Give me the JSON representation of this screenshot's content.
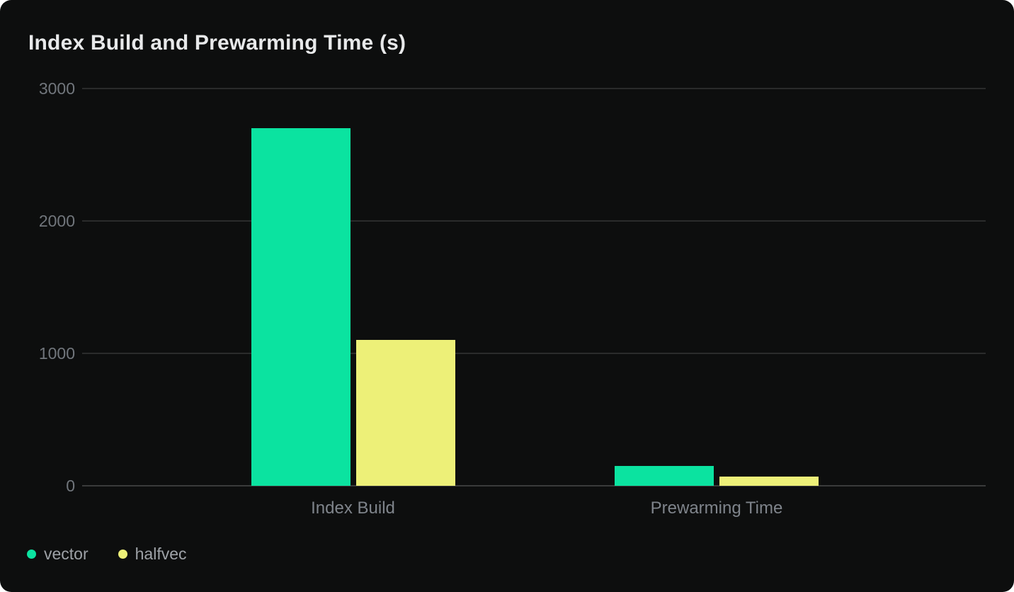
{
  "title": "Index Build and Prewarming Time (s)",
  "chart_data": {
    "type": "bar",
    "title": "Index Build and Prewarming Time (s)",
    "categories": [
      "Index Build",
      "Prewarming Time"
    ],
    "series": [
      {
        "name": "vector",
        "color": "#0be3a0",
        "values": [
          2700,
          150
        ]
      },
      {
        "name": "halfvec",
        "color": "#edf078",
        "values": [
          1100,
          70
        ]
      }
    ],
    "ylabel": "",
    "xlabel": "",
    "ylim": [
      0,
      3000
    ],
    "y_ticks": [
      0,
      1000,
      2000,
      3000
    ],
    "grid": true,
    "legend_position": "bottom-left",
    "background": "#0d0e0e",
    "unit": "s"
  },
  "legend": {
    "items": [
      {
        "label": "vector",
        "color": "#0be3a0"
      },
      {
        "label": "halfvec",
        "color": "#edf078"
      }
    ]
  }
}
